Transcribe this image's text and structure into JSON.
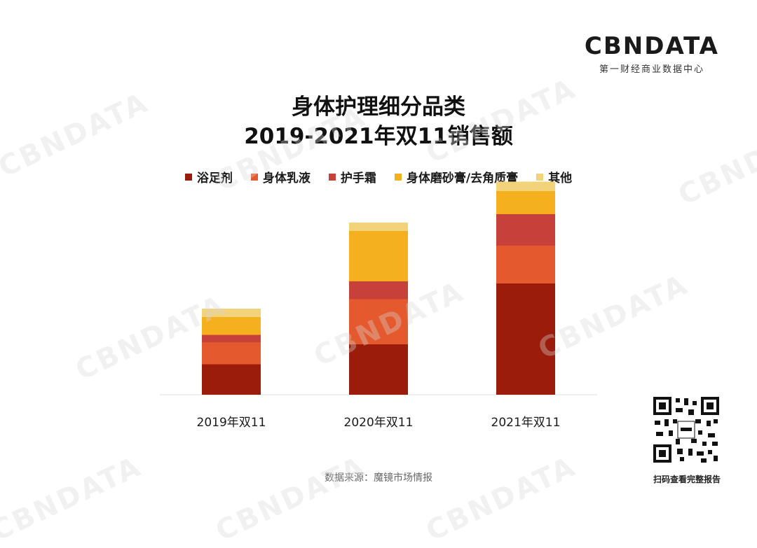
{
  "brand": {
    "logo_text": "CBNDATA",
    "logo_subtitle": "第一财经商业数据中心"
  },
  "footer": {
    "source": "数据来源：魔镜市场情报",
    "qr_caption": "扫码查看完整报告"
  },
  "colors": [
    "#9B1C0A",
    "#E45A2E",
    "#C8403A",
    "#F4B01E",
    "#F2D37A"
  ],
  "chart_data": {
    "type": "bar",
    "stacked": true,
    "title": "身体护理细分品类\n2019-2021年双11销售额",
    "title_lines": [
      "身体护理细分品类",
      "2019-2021年双11销售额"
    ],
    "categories": [
      "2019年双11",
      "2020年双11",
      "2021年双11"
    ],
    "series": [
      {
        "name": "浴足剂",
        "values": [
          29,
          48,
          106
        ]
      },
      {
        "name": "身体乳液",
        "values": [
          21,
          43,
          36
        ]
      },
      {
        "name": "护手霜",
        "values": [
          7,
          17,
          30
        ]
      },
      {
        "name": "身体磨砂膏/去角质膏",
        "values": [
          17,
          48,
          22
        ]
      },
      {
        "name": "其他",
        "values": [
          8,
          8,
          9
        ]
      }
    ],
    "ylim": [
      0,
      200
    ],
    "grid": false,
    "y_axis_visible": false,
    "legend_position": "top"
  }
}
